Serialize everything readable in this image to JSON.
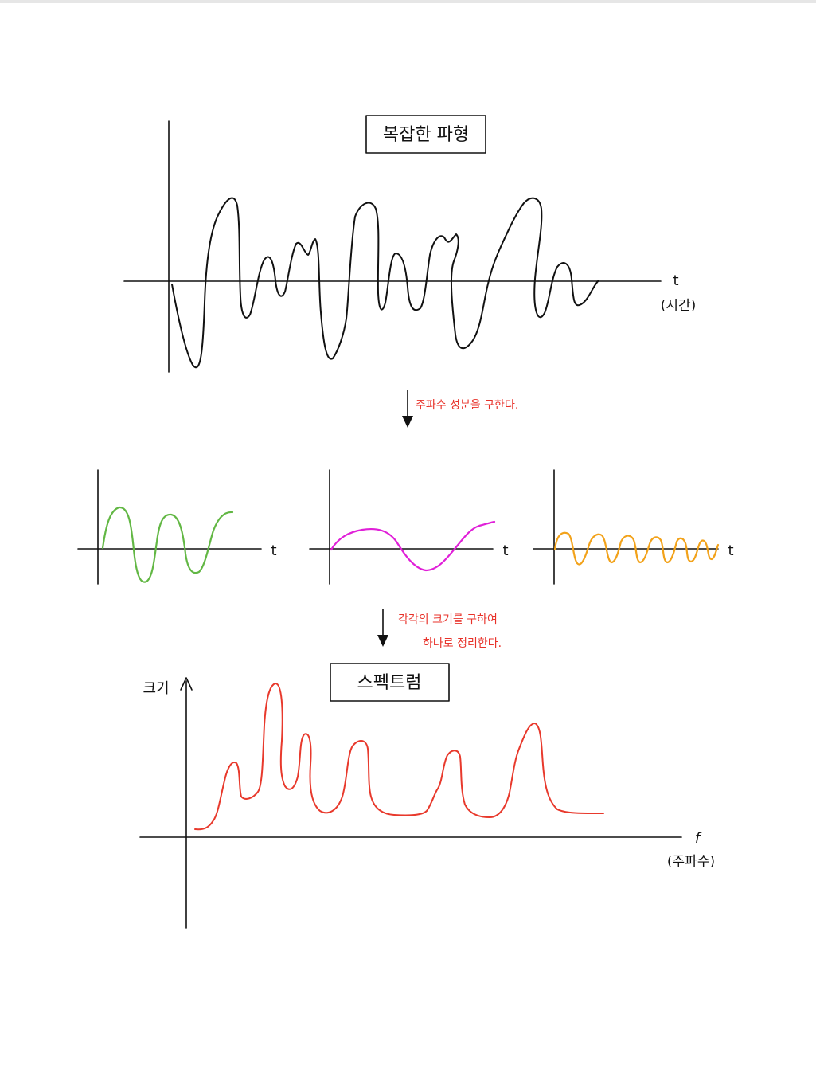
{
  "colors": {
    "ink": "#111111",
    "note": "#e8322a",
    "green": "#62b744",
    "magenta": "#e020d8",
    "orange": "#f2a21a",
    "spectrum": "#e8392c"
  },
  "complex": {
    "title": "복잡한 파형",
    "t_label": "t",
    "t_unit": "(시간)"
  },
  "step1": {
    "note": "주파수 성분을 구한다."
  },
  "components": {
    "t_label_1": "t",
    "t_label_2": "t",
    "t_label_3": "t"
  },
  "step2": {
    "note_line1": "각각의 크기를 구하여",
    "note_line2": "하나로 정리한다."
  },
  "spectrum": {
    "title": "스펙트럼",
    "y_label": "크기",
    "f_label": "f",
    "f_unit": "(주파수)"
  }
}
